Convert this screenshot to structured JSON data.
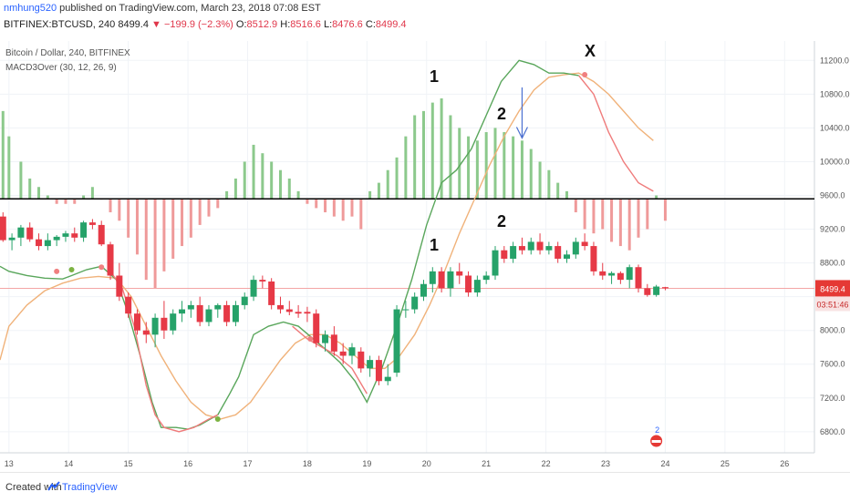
{
  "header": {
    "user": "nmhung520",
    "published": "published on TradingView.com, March 23, 2018 07:08 EST",
    "symbol": "BITFINEX:BTCUSD, 240",
    "last": "8499.4",
    "change": "−199.9 (−2.3%)",
    "o_label": "O:",
    "o": "8512.9",
    "h_label": "H:",
    "h": "8516.6",
    "l_label": "L:",
    "l": "8476.6",
    "c_label": "C:",
    "c": "8499.4"
  },
  "legend": {
    "title": "Bitcoin / Dollar, 240, BITFINEX",
    "indicator": "MACD3Over (30, 12, 26, 9)"
  },
  "price_tag": {
    "price": "8499.4",
    "timer": "03:51:46"
  },
  "annotations": {
    "upper_1": "1",
    "upper_2": "2",
    "upper_x": "X",
    "lower_1": "1",
    "lower_2": "2"
  },
  "badge": {
    "count": "2"
  },
  "footer": {
    "created": "Created with",
    "brand": "TradingView"
  },
  "colors": {
    "up": "#26a269",
    "down": "#e63946",
    "up_hist": "#8cc98c",
    "down_hist": "#ef9a9a",
    "macd": "#59a65b",
    "signal": "#f0b27a",
    "zero": "#000000",
    "price_line": "#f3a5a5",
    "tag": "#e53935"
  },
  "chart_data": {
    "type": "candlestick",
    "y_axis": {
      "ticks": [
        "11200.0",
        "10800.0",
        "10400.0",
        "10000.0",
        "9600.0",
        "9200.0",
        "8800.0",
        "8400.0",
        "8000.0",
        "7600.0",
        "7200.0",
        "6800.0"
      ],
      "range": [
        6550,
        11430
      ]
    },
    "x_axis": {
      "ticks": [
        "13",
        "14",
        "15",
        "16",
        "17",
        "18",
        "19",
        "20",
        "21",
        "22",
        "23",
        "24",
        "25",
        "26"
      ],
      "range": [
        12.85,
        26.5
      ]
    },
    "last_price": 8499.4,
    "candles": [
      [
        12.9,
        9350,
        9400,
        9050,
        9070
      ],
      [
        13.05,
        9070,
        9150,
        8950,
        9100
      ],
      [
        13.2,
        9100,
        9250,
        9000,
        9220
      ],
      [
        13.35,
        9220,
        9280,
        9050,
        9080
      ],
      [
        13.5,
        9080,
        9150,
        8950,
        9000
      ],
      [
        13.65,
        9000,
        9150,
        8950,
        9070
      ],
      [
        13.8,
        9070,
        9130,
        9000,
        9110
      ],
      [
        13.95,
        9110,
        9180,
        9050,
        9150
      ],
      [
        14.1,
        9150,
        9220,
        9050,
        9100
      ],
      [
        14.25,
        9100,
        9300,
        9050,
        9280
      ],
      [
        14.4,
        9280,
        9320,
        9200,
        9250
      ],
      [
        14.55,
        9250,
        9300,
        9000,
        9020
      ],
      [
        14.7,
        9020,
        9050,
        8600,
        8650
      ],
      [
        14.85,
        8650,
        8800,
        8350,
        8400
      ],
      [
        15.0,
        8400,
        8450,
        8150,
        8200
      ],
      [
        15.15,
        8200,
        8250,
        7950,
        8000
      ],
      [
        15.3,
        8000,
        8100,
        7850,
        7950
      ],
      [
        15.45,
        7950,
        8200,
        7800,
        8150
      ],
      [
        15.6,
        8150,
        8350,
        7900,
        8000
      ],
      [
        15.75,
        8000,
        8250,
        7950,
        8200
      ],
      [
        15.9,
        8200,
        8350,
        8100,
        8250
      ],
      [
        16.05,
        8250,
        8350,
        8150,
        8300
      ],
      [
        16.2,
        8300,
        8400,
        8050,
        8100
      ],
      [
        16.35,
        8100,
        8300,
        8050,
        8250
      ],
      [
        16.5,
        8250,
        8320,
        8150,
        8300
      ],
      [
        16.65,
        8300,
        8350,
        8050,
        8100
      ],
      [
        16.8,
        8100,
        8350,
        8050,
        8300
      ],
      [
        16.95,
        8300,
        8450,
        8250,
        8400
      ],
      [
        17.1,
        8400,
        8650,
        8350,
        8600
      ],
      [
        17.25,
        8600,
        8650,
        8500,
        8580
      ],
      [
        17.4,
        8580,
        8620,
        8250,
        8300
      ],
      [
        17.55,
        8300,
        8400,
        8200,
        8250
      ],
      [
        17.7,
        8250,
        8350,
        8180,
        8220
      ],
      [
        17.85,
        8220,
        8300,
        8150,
        8200
      ],
      [
        18.0,
        8220,
        8280,
        8100,
        8200
      ],
      [
        18.15,
        8200,
        8250,
        7800,
        7850
      ],
      [
        18.3,
        7850,
        8000,
        7750,
        7950
      ],
      [
        18.45,
        7950,
        8050,
        7700,
        7750
      ],
      [
        18.6,
        7750,
        7850,
        7600,
        7700
      ],
      [
        18.75,
        7700,
        7850,
        7600,
        7800
      ],
      [
        18.9,
        7750,
        7800,
        7500,
        7550
      ],
      [
        19.05,
        7550,
        7700,
        7450,
        7650
      ],
      [
        19.2,
        7650,
        7700,
        7350,
        7400
      ],
      [
        19.35,
        7400,
        7600,
        7350,
        7450
      ],
      [
        19.5,
        7500,
        8300,
        7450,
        8250
      ],
      [
        19.65,
        8250,
        8350,
        8150,
        8250
      ],
      [
        19.8,
        8250,
        8450,
        8200,
        8400
      ],
      [
        19.95,
        8400,
        8600,
        8350,
        8550
      ],
      [
        20.1,
        8550,
        8750,
        8450,
        8700
      ],
      [
        20.25,
        8700,
        8750,
        8450,
        8500
      ],
      [
        20.4,
        8500,
        8750,
        8400,
        8700
      ],
      [
        20.55,
        8700,
        8800,
        8550,
        8650
      ],
      [
        20.7,
        8650,
        8700,
        8400,
        8450
      ],
      [
        20.85,
        8450,
        8650,
        8400,
        8600
      ],
      [
        21.0,
        8600,
        8700,
        8550,
        8650
      ],
      [
        21.15,
        8650,
        9000,
        8600,
        8950
      ],
      [
        21.3,
        8950,
        9000,
        8800,
        8850
      ],
      [
        21.45,
        8850,
        9050,
        8800,
        9000
      ],
      [
        21.6,
        9000,
        9100,
        8900,
        8950
      ],
      [
        21.75,
        8950,
        9100,
        8900,
        9050
      ],
      [
        21.9,
        9050,
        9150,
        8900,
        8950
      ],
      [
        22.05,
        8950,
        9050,
        8900,
        9000
      ],
      [
        22.2,
        9000,
        9050,
        8800,
        8850
      ],
      [
        22.35,
        8850,
        8950,
        8800,
        8900
      ],
      [
        22.5,
        8900,
        9100,
        8850,
        9050
      ],
      [
        22.65,
        9050,
        9150,
        8950,
        9000
      ],
      [
        22.8,
        9000,
        9050,
        8650,
        8700
      ],
      [
        22.95,
        8700,
        8800,
        8600,
        8650
      ],
      [
        23.1,
        8650,
        8700,
        8550,
        8680
      ],
      [
        23.25,
        8680,
        8700,
        8550,
        8600
      ],
      [
        23.4,
        8600,
        8780,
        8500,
        8750
      ],
      [
        23.55,
        8750,
        8780,
        8450,
        8500
      ],
      [
        23.7,
        8500,
        8550,
        8400,
        8420
      ],
      [
        23.85,
        8420,
        8540,
        8400,
        8520
      ],
      [
        24.0,
        8512.9,
        8516.6,
        8476.6,
        8499.4
      ]
    ],
    "histogram": [
      [
        12.9,
        10600
      ],
      [
        13.0,
        10300
      ],
      [
        13.2,
        10000
      ],
      [
        13.35,
        9800
      ],
      [
        13.5,
        9700
      ],
      [
        13.65,
        9600
      ],
      [
        13.8,
        9500
      ],
      [
        13.95,
        9500
      ],
      [
        14.1,
        9500
      ],
      [
        14.25,
        9600
      ],
      [
        14.4,
        9700
      ],
      [
        14.55,
        9550
      ],
      [
        14.7,
        9400
      ],
      [
        14.85,
        9300
      ],
      [
        15.0,
        9100
      ],
      [
        15.15,
        8900
      ],
      [
        15.3,
        8600
      ],
      [
        15.45,
        8500
      ],
      [
        15.6,
        8700
      ],
      [
        15.75,
        8850
      ],
      [
        15.9,
        9000
      ],
      [
        16.05,
        9100
      ],
      [
        16.2,
        9250
      ],
      [
        16.35,
        9350
      ],
      [
        16.5,
        9450
      ],
      [
        16.65,
        9650
      ],
      [
        16.8,
        9800
      ],
      [
        16.95,
        10000
      ],
      [
        17.1,
        10200
      ],
      [
        17.25,
        10100
      ],
      [
        17.4,
        10000
      ],
      [
        17.55,
        9900
      ],
      [
        17.7,
        9800
      ],
      [
        17.85,
        9650
      ],
      [
        18.0,
        9500
      ],
      [
        18.15,
        9450
      ],
      [
        18.3,
        9400
      ],
      [
        18.45,
        9350
      ],
      [
        18.6,
        9300
      ],
      [
        18.75,
        9350
      ],
      [
        18.9,
        9200
      ],
      [
        19.05,
        9650
      ],
      [
        19.2,
        9750
      ],
      [
        19.35,
        9900
      ],
      [
        19.5,
        10050
      ],
      [
        19.65,
        10300
      ],
      [
        19.8,
        10550
      ],
      [
        19.95,
        10600
      ],
      [
        20.1,
        10700
      ],
      [
        20.25,
        10750
      ],
      [
        20.4,
        10550
      ],
      [
        20.55,
        10400
      ],
      [
        20.7,
        10300
      ],
      [
        20.85,
        10250
      ],
      [
        21.0,
        10350
      ],
      [
        21.15,
        10400
      ],
      [
        21.3,
        10350
      ],
      [
        21.45,
        10300
      ],
      [
        21.6,
        10250
      ],
      [
        21.75,
        10150
      ],
      [
        21.9,
        10000
      ],
      [
        22.05,
        9900
      ],
      [
        22.2,
        9750
      ],
      [
        22.35,
        9650
      ],
      [
        22.5,
        9400
      ],
      [
        22.65,
        9200
      ],
      [
        22.8,
        9150
      ],
      [
        22.95,
        9200
      ],
      [
        23.1,
        9050
      ],
      [
        23.25,
        9000
      ],
      [
        23.4,
        8950
      ],
      [
        23.55,
        9100
      ],
      [
        23.7,
        9200
      ],
      [
        23.85,
        9600
      ],
      [
        24.0,
        9300
      ]
    ],
    "zero_line": 9560,
    "macd_line": [
      [
        12.85,
        8760
      ],
      [
        13.0,
        8700
      ],
      [
        13.3,
        8650
      ],
      [
        13.6,
        8620
      ],
      [
        13.9,
        8610
      ],
      [
        14.05,
        8650
      ],
      [
        14.3,
        8720
      ],
      [
        14.55,
        8760
      ],
      [
        14.8,
        8600
      ],
      [
        15.0,
        8200
      ],
      [
        15.2,
        7700
      ],
      [
        15.4,
        7150
      ],
      [
        15.55,
        6850
      ],
      [
        15.8,
        6850
      ],
      [
        16.0,
        6830
      ],
      [
        16.2,
        6880
      ],
      [
        16.5,
        7000
      ],
      [
        16.7,
        7250
      ],
      [
        16.85,
        7450
      ],
      [
        17.1,
        7950
      ],
      [
        17.35,
        8050
      ],
      [
        17.6,
        8100
      ],
      [
        17.85,
        8050
      ],
      [
        18.1,
        7900
      ],
      [
        18.3,
        7780
      ],
      [
        18.55,
        7620
      ],
      [
        18.8,
        7400
      ],
      [
        19.0,
        7150
      ],
      [
        19.25,
        7550
      ],
      [
        19.5,
        8050
      ],
      [
        19.75,
        8600
      ],
      [
        20.0,
        9250
      ],
      [
        20.25,
        9750
      ],
      [
        20.5,
        9900
      ],
      [
        20.75,
        10150
      ],
      [
        21.0,
        10550
      ],
      [
        21.25,
        10950
      ],
      [
        21.55,
        11200
      ],
      [
        21.8,
        11150
      ],
      [
        22.05,
        11050
      ],
      [
        22.3,
        11050
      ],
      [
        22.55,
        11020
      ]
    ],
    "signal_line": [
      [
        12.85,
        7650
      ],
      [
        13.0,
        8050
      ],
      [
        13.3,
        8300
      ],
      [
        13.6,
        8470
      ],
      [
        13.9,
        8560
      ],
      [
        14.2,
        8620
      ],
      [
        14.5,
        8640
      ],
      [
        14.8,
        8620
      ],
      [
        15.05,
        8400
      ],
      [
        15.3,
        8050
      ],
      [
        15.55,
        7700
      ],
      [
        15.8,
        7400
      ],
      [
        16.05,
        7150
      ],
      [
        16.3,
        7000
      ],
      [
        16.55,
        6950
      ],
      [
        16.8,
        7000
      ],
      [
        17.05,
        7150
      ],
      [
        17.3,
        7400
      ],
      [
        17.55,
        7650
      ],
      [
        17.8,
        7850
      ],
      [
        18.05,
        7950
      ],
      [
        18.3,
        7950
      ],
      [
        18.55,
        7850
      ],
      [
        18.8,
        7700
      ],
      [
        19.05,
        7550
      ],
      [
        19.3,
        7550
      ],
      [
        19.55,
        7700
      ],
      [
        19.8,
        7950
      ],
      [
        20.05,
        8300
      ],
      [
        20.3,
        8700
      ],
      [
        20.55,
        9150
      ],
      [
        20.8,
        9550
      ],
      [
        21.05,
        9950
      ],
      [
        21.3,
        10300
      ],
      [
        21.55,
        10600
      ],
      [
        21.8,
        10850
      ],
      [
        22.05,
        11000
      ],
      [
        22.3,
        11030
      ],
      [
        22.55,
        11050
      ],
      [
        22.8,
        10950
      ],
      [
        23.05,
        10800
      ],
      [
        23.3,
        10600
      ],
      [
        23.55,
        10400
      ],
      [
        23.8,
        10250
      ]
    ],
    "red_line": [
      [
        14.7,
        8700
      ],
      [
        14.9,
        8500
      ],
      [
        15.1,
        8050
      ],
      [
        15.3,
        7350
      ],
      [
        15.45,
        7000
      ],
      [
        15.6,
        6850
      ],
      [
        15.85,
        6800
      ],
      [
        16.1,
        6850
      ],
      [
        16.35,
        6950
      ],
      [
        16.5,
        7000
      ],
      [
        17.75,
        8050
      ],
      [
        18.0,
        7900
      ],
      [
        18.25,
        7800
      ],
      [
        18.5,
        7700
      ],
      [
        18.75,
        7550
      ],
      [
        19.0,
        7250
      ],
      [
        22.55,
        11020
      ],
      [
        22.8,
        10800
      ],
      [
        23.05,
        10350
      ],
      [
        23.3,
        10000
      ],
      [
        23.55,
        9750
      ],
      [
        23.8,
        9650
      ]
    ],
    "dots": [
      [
        13.8,
        8700,
        "#f08080"
      ],
      [
        14.05,
        8720,
        "#7cb342"
      ],
      [
        14.55,
        8750,
        "#f08080"
      ],
      [
        16.5,
        6950,
        "#7cb342"
      ],
      [
        18.05,
        7900,
        "#f08080"
      ],
      [
        22.65,
        11030,
        "#f08080"
      ]
    ],
    "arrow": {
      "x": 21.6,
      "from": 10880,
      "to": 10280
    }
  }
}
